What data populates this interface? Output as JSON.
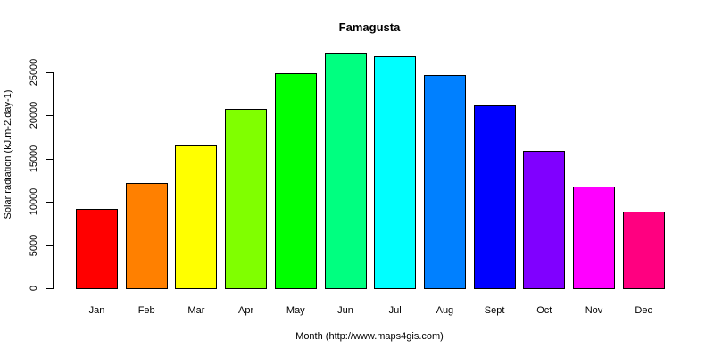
{
  "chart_data": {
    "type": "bar",
    "title": "Famagusta",
    "xlabel": "Month (http://www.maps4gis.com)",
    "ylabel": "Solar radiation (kJ.m-2.day-1)",
    "categories": [
      "Jan",
      "Feb",
      "Mar",
      "Apr",
      "May",
      "Jun",
      "Jul",
      "Aug",
      "Sept",
      "Oct",
      "Nov",
      "Dec"
    ],
    "values": [
      9200,
      12200,
      16500,
      20800,
      24900,
      27300,
      26900,
      24700,
      21200,
      15900,
      11800,
      8900
    ],
    "colors": [
      "#FF0000",
      "#FF8000",
      "#FFFF00",
      "#80FF00",
      "#00FF00",
      "#00FF80",
      "#00FFFF",
      "#0080FF",
      "#0000FF",
      "#8000FF",
      "#FF00FF",
      "#FF0080"
    ],
    "yticks": [
      0,
      5000,
      10000,
      15000,
      20000,
      25000
    ],
    "ylim": [
      0,
      27300
    ],
    "grid": false,
    "legend": "none"
  }
}
